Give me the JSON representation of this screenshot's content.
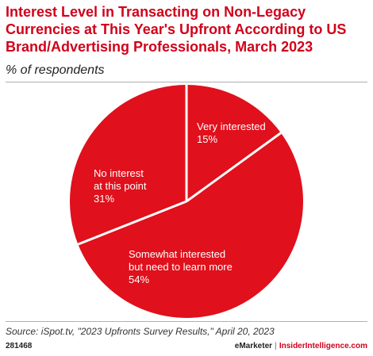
{
  "chart_data": {
    "type": "pie",
    "title": "Interest Level in Transacting on Non-Legacy Currencies at This Year's Upfront According to US Brand/Advertising Professionals, March 2023",
    "subtitle": "% of respondents",
    "slices": [
      {
        "label_lines": [
          "Very interested"
        ],
        "value_label": "15%",
        "value": 15
      },
      {
        "label_lines": [
          "Somewhat interested",
          "but need to learn more"
        ],
        "value_label": "54%",
        "value": 54
      },
      {
        "label_lines": [
          "No interest",
          "at this point"
        ],
        "value_label": "31%",
        "value": 31
      }
    ],
    "colors": {
      "slice": "#e0101c",
      "border": "#ffffff",
      "label": "#ffffff"
    },
    "start_angle_deg": 0,
    "direction": "clockwise"
  },
  "source": "Source: iSpot.tv, \"2023 Upfronts Survey Results,\" April 20, 2023",
  "footer": {
    "chart_id": "281468",
    "brand_left": "eMarketer",
    "separator": "|",
    "brand_right": "InsiderIntelligence.com"
  }
}
